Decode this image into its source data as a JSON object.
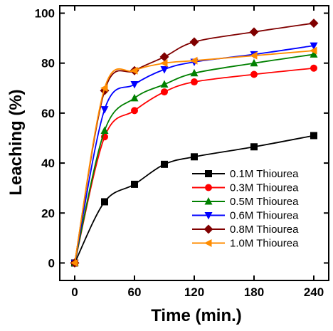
{
  "chart_data": {
    "type": "line",
    "title": "",
    "xlabel": "Time (min.)",
    "ylabel": "Leaching (%)",
    "xlim": [
      -15,
      255
    ],
    "ylim": [
      -7,
      103
    ],
    "xticks": [
      0,
      60,
      120,
      180,
      240
    ],
    "yticks": [
      0,
      20,
      40,
      60,
      80,
      100
    ],
    "x": [
      0,
      30,
      60,
      90,
      120,
      180,
      240
    ],
    "legend_position": "bottom-right",
    "grid": false,
    "series": [
      {
        "name": "0.1M Thiourea",
        "color": "#000000",
        "marker": "square",
        "values": [
          0,
          24.5,
          31.5,
          39.5,
          42.5,
          46.5,
          51
        ]
      },
      {
        "name": "0.3M Thiourea",
        "color": "#ff0000",
        "marker": "circle",
        "values": [
          0,
          50.5,
          61,
          68.5,
          72.5,
          75.5,
          78
        ]
      },
      {
        "name": "0.5M Thiourea",
        "color": "#008000",
        "marker": "triangle-up",
        "values": [
          0,
          53,
          66,
          71.5,
          76,
          80,
          83.5
        ]
      },
      {
        "name": "0.6M Thiourea",
        "color": "#0000ff",
        "marker": "triangle-down",
        "values": [
          0,
          61.5,
          71.5,
          77.5,
          80.5,
          83.5,
          87
        ]
      },
      {
        "name": "0.8M Thiourea",
        "color": "#800000",
        "marker": "diamond",
        "values": [
          0,
          69,
          77,
          82.5,
          88.5,
          92.5,
          96
        ]
      },
      {
        "name": "1.0M Thiourea",
        "color": "#ff8c00",
        "marker": "triangle-left",
        "values": [
          0,
          70,
          77,
          80,
          81,
          83,
          85
        ]
      }
    ]
  }
}
